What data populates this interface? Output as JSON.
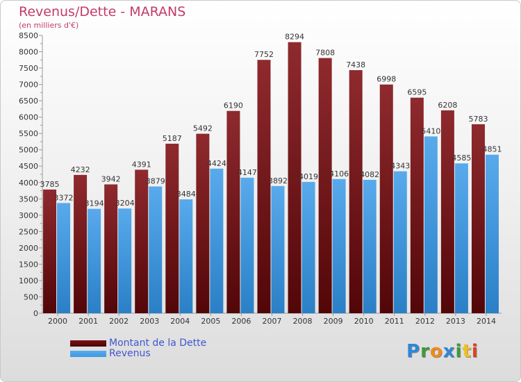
{
  "title": "Revenus/Dette - MARANS",
  "subtitle": "(en milliers d'€)",
  "brand": {
    "text": "Proxiti",
    "letter_colors": [
      "#2f87d6",
      "#3c9b3c",
      "#f08a1c",
      "#2f87d6",
      "#3c9b3c",
      "#f0c020",
      "#e0401e"
    ]
  },
  "chart_data": {
    "type": "bar",
    "categories": [
      "2000",
      "2001",
      "2002",
      "2003",
      "2004",
      "2005",
      "2006",
      "2007",
      "2008",
      "2009",
      "2010",
      "2011",
      "2012",
      "2013",
      "2014"
    ],
    "series": [
      {
        "name": "Montant de la Dette",
        "values": [
          3785,
          4232,
          3942,
          4391,
          5187,
          5492,
          6190,
          7752,
          8294,
          7808,
          7438,
          6998,
          6595,
          6208,
          5783
        ],
        "color": "#7a0f14",
        "labels": [
          "3785",
          "4232",
          "3942",
          "4391",
          "5187",
          "5492",
          "6190",
          "7752",
          "8294",
          "7808",
          "7438",
          "6998",
          "6595",
          "6208",
          "5783"
        ]
      },
      {
        "name": "Revenus",
        "values": [
          3372,
          3194,
          3204,
          3879,
          3484,
          4424,
          4147,
          3892,
          4019,
          4106,
          4082,
          4343,
          5410,
          4585,
          4851
        ],
        "color": "#3d9ae2",
        "labels": [
          "3372",
          "3194",
          "3204",
          "3879",
          "3484",
          "4424",
          "4147",
          "3892",
          "4019",
          "4106",
          "4082",
          "4343",
          "5410",
          "4585",
          "4851"
        ]
      }
    ],
    "ylim": [
      0,
      8500
    ],
    "yticks": [
      "0",
      "250",
      "500",
      "750",
      "1000",
      "1250",
      "1500",
      "1750",
      "2000",
      "2250",
      "2500",
      "2750",
      "3000",
      "3250",
      "3500",
      "3750",
      "4000",
      "4250",
      "4500",
      "4750",
      "5000",
      "5250",
      "5500",
      "5750",
      "6000",
      "6250",
      "6500",
      "6750",
      "7000",
      "7250",
      "7500",
      "7750",
      "8000",
      "8250",
      "8500"
    ],
    "ytick_labels": [
      "0",
      "500",
      "1000",
      "1500",
      "2000",
      "2500",
      "3000",
      "3500",
      "4000",
      "4500",
      "5000",
      "5500",
      "6000",
      "6500",
      "7000",
      "7500",
      "8000",
      "8500"
    ],
    "grid": false,
    "legend_position": "bottom-left"
  }
}
